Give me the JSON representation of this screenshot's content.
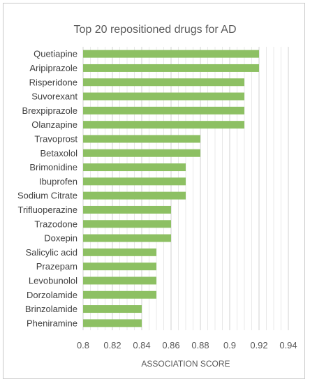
{
  "chart_data": {
    "type": "bar",
    "orientation": "horizontal",
    "title": "Top 20 repositioned drugs for AD",
    "xlabel": "ASSOCIATION SCORE",
    "ylabel": "",
    "xlim": [
      0.8,
      0.94
    ],
    "xticks": [
      "0.8",
      "0.82",
      "0.84",
      "0.86",
      "0.88",
      "0.9",
      "0.92",
      "0.94"
    ],
    "grid": true,
    "bar_color": "#8dc063",
    "categories": [
      "Quetiapine",
      "Aripiprazole",
      "Risperidone",
      "Suvorexant",
      "Brexpiprazole",
      "Olanzapine",
      "Travoprost",
      "Betaxolol",
      "Brimonidine",
      "Ibuprofen",
      "Sodium Citrate",
      "Trifluoperazine",
      "Trazodone",
      "Doxepin",
      "Salicylic acid",
      "Prazepam",
      "Levobunolol",
      "Dorzolamide",
      "Brinzolamide",
      "Pheniramine"
    ],
    "values": [
      0.92,
      0.92,
      0.91,
      0.91,
      0.91,
      0.91,
      0.88,
      0.88,
      0.87,
      0.87,
      0.87,
      0.86,
      0.86,
      0.86,
      0.85,
      0.85,
      0.85,
      0.85,
      0.84,
      0.84
    ]
  }
}
